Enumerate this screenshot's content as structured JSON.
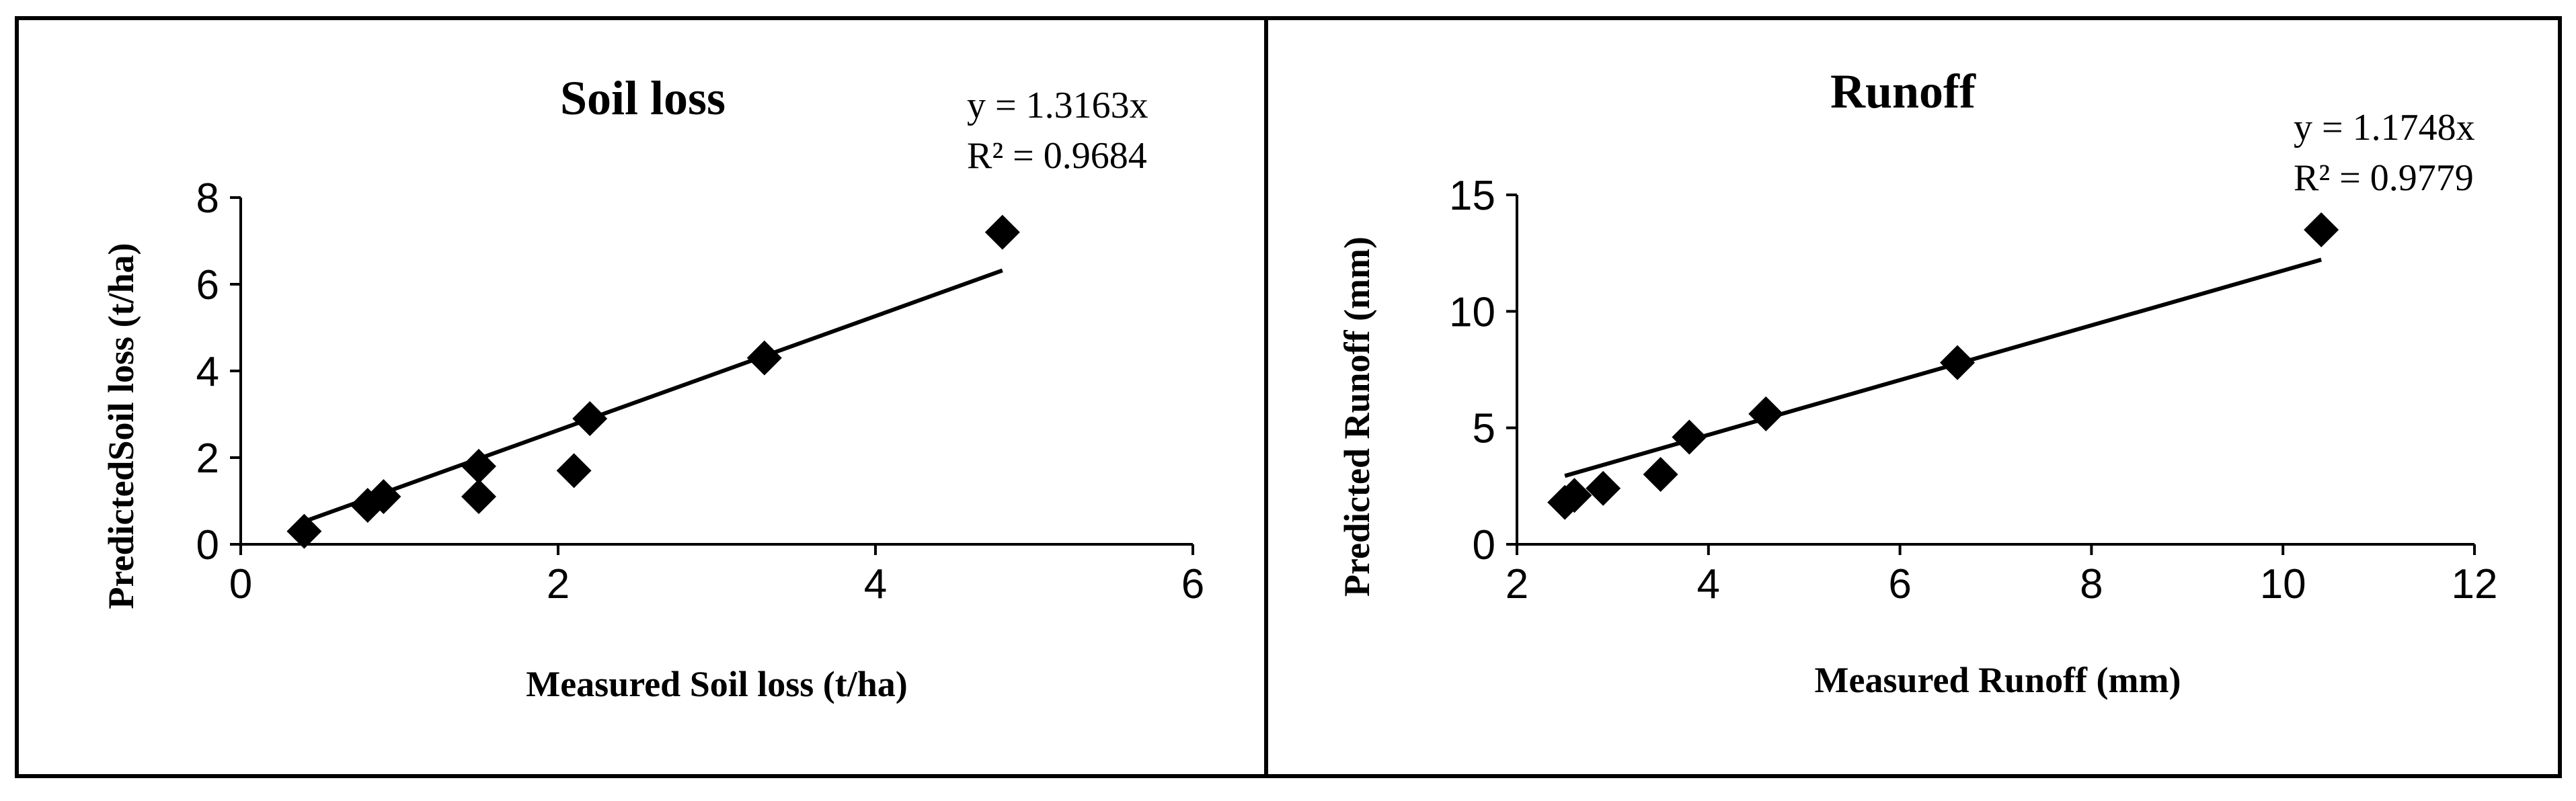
{
  "chart_data": [
    {
      "type": "scatter",
      "title": "Soil loss",
      "xlabel": "Measured Soil loss (t/ha)",
      "ylabel": "PredictedSoil loss (t/ha)",
      "xlim": [
        0,
        6
      ],
      "ylim": [
        0,
        8
      ],
      "xticks": [
        0,
        2,
        4,
        6
      ],
      "yticks": [
        0,
        2,
        4,
        6,
        8
      ],
      "grid": false,
      "legend": "none",
      "marker": "diamond",
      "color": "#000000",
      "points": [
        {
          "x": 0.4,
          "y": 0.3
        },
        {
          "x": 0.8,
          "y": 0.9
        },
        {
          "x": 0.9,
          "y": 1.1
        },
        {
          "x": 1.5,
          "y": 1.8
        },
        {
          "x": 1.5,
          "y": 1.1
        },
        {
          "x": 2.1,
          "y": 1.7
        },
        {
          "x": 2.2,
          "y": 2.9
        },
        {
          "x": 3.3,
          "y": 4.3
        },
        {
          "x": 4.8,
          "y": 7.2
        }
      ],
      "trendline": {
        "slope": 1.3163,
        "x_start": 0.4,
        "x_end": 4.8
      },
      "equation": "y = 1.3163x",
      "r2": "R² = 0.9684"
    },
    {
      "type": "scatter",
      "title": "Runoff",
      "xlabel": "Measured Runoff (mm)",
      "ylabel": "Predicted Runoff (mm)",
      "xlim": [
        2,
        12
      ],
      "ylim": [
        0,
        15
      ],
      "xticks": [
        2,
        4,
        6,
        8,
        10,
        12
      ],
      "yticks": [
        0,
        5,
        10,
        15
      ],
      "grid": false,
      "legend": "none",
      "marker": "diamond",
      "color": "#000000",
      "points": [
        {
          "x": 2.5,
          "y": 1.8
        },
        {
          "x": 2.6,
          "y": 2.1
        },
        {
          "x": 2.9,
          "y": 2.4
        },
        {
          "x": 3.5,
          "y": 3.0
        },
        {
          "x": 3.8,
          "y": 4.6
        },
        {
          "x": 4.6,
          "y": 5.6
        },
        {
          "x": 6.6,
          "y": 7.8
        },
        {
          "x": 10.4,
          "y": 13.5
        }
      ],
      "trendline": {
        "slope": 1.1748,
        "x_start": 2.5,
        "x_end": 10.4
      },
      "equation": "y = 1.1748x",
      "r2": "R² = 0.9779"
    }
  ]
}
